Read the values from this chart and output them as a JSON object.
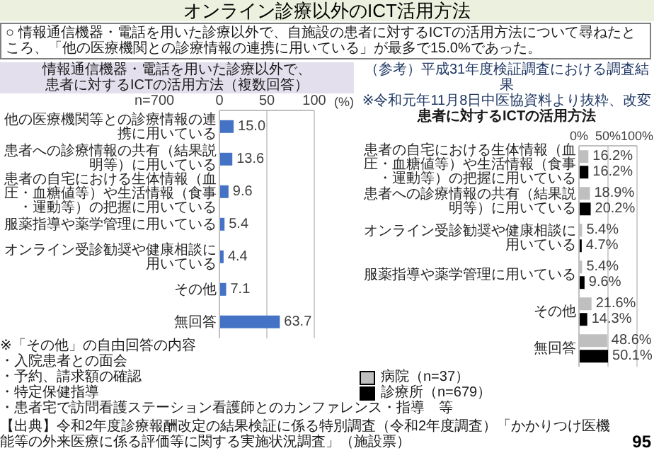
{
  "chart_data": [
    {
      "type": "other",
      "title": "オンライン診療以外のICT活用方法",
      "subtitle": "○ 情報通信機器・電話を用いた診療以外で、自施設の患者に対するICTの活用方法について尋ねたところ、「他の医療機関との診療情報の連携に用いている」が最多で15.0%であった。",
      "annotations": [
        "【出典】令和2年度診療報酬改定の結果検証に係る特別調査（令和2年度調査）「かかりつけ医機能等の外来医療に係る評価等に関する実施状況調査」（施設票）",
        "95"
      ]
    },
    {
      "type": "bar",
      "orientation": "horizontal",
      "title": "情報通信機器・電話を用いた診療以外で、患者に対するICTの活用方法（複数回答）",
      "xlabel": "(%)",
      "categories": [
        "他の医療機関等との診療情報の連携に用いている",
        "患者への診療情報の共有（結果説明等）に用いている",
        "患者の自宅における生体情報（血圧・血糖値等）や生活情報（食事・運動等）の把握に用いている",
        "服薬指導や薬学管理に用いている",
        "オンライン受診勧奨や健康相談に用いている",
        "その他",
        "無回答"
      ],
      "values": [
        15.0,
        13.6,
        9.6,
        5.4,
        4.4,
        7.1,
        63.7
      ],
      "value_labels": [
        "15.0",
        "13.6",
        "9.6",
        "5.4",
        "4.4",
        "7.1",
        "63.7"
      ],
      "color": "#4472c4",
      "xlim": [
        0,
        100
      ],
      "xticks": [
        0,
        50,
        100
      ],
      "grid": "x",
      "annotations": [
        "n=700",
        "※「その他」の自由回答の内容",
        "・入院患者との面会",
        "・予約、請求額の確認",
        "・特定保健指導",
        "・患者宅で訪問看護ステーション看護師とのカンファレンス・指導　等"
      ]
    },
    {
      "type": "bar",
      "orientation": "horizontal",
      "title": "（参考）平成31年度検証調査における調査結果",
      "subtitle": "※令和元年11月8日中医協資料より抜粋、改変",
      "annotations": [
        "患者に対するICTの活用方法"
      ],
      "categories": [
        "患者の自宅における生体情報（血圧・血糖値等）や生活情報（食事・運動等）の把握に用いている",
        "患者への診療情報の共有（結果説明等）に用いている",
        "オンライン受診勧奨や健康相談に用いている",
        "服薬指導や薬学管理に用いている",
        "その他",
        "無回答"
      ],
      "series": [
        {
          "name": "病院（n=37）",
          "color": "#bfbfbf",
          "values": [
            16.2,
            18.9,
            5.4,
            5.4,
            21.6,
            48.6
          ],
          "value_labels": [
            "16.2%",
            "18.9%",
            "5.4%",
            "5.4%",
            "21.6%",
            "48.6%"
          ]
        },
        {
          "name": "診療所（n=679）",
          "color": "#000000",
          "values": [
            16.2,
            20.2,
            4.7,
            9.6,
            14.3,
            50.1
          ],
          "value_labels": [
            "16.2%",
            "20.2%",
            "4.7%",
            "9.6%",
            "14.3%",
            "50.1%"
          ]
        }
      ],
      "xlim": [
        0,
        100
      ],
      "xticks": [
        {
          "value": 0,
          "label": "0%"
        },
        {
          "value": 50,
          "label": "50%"
        },
        {
          "value": 100,
          "label": "100%"
        }
      ],
      "grid": "x",
      "legend": "bottom left"
    }
  ]
}
